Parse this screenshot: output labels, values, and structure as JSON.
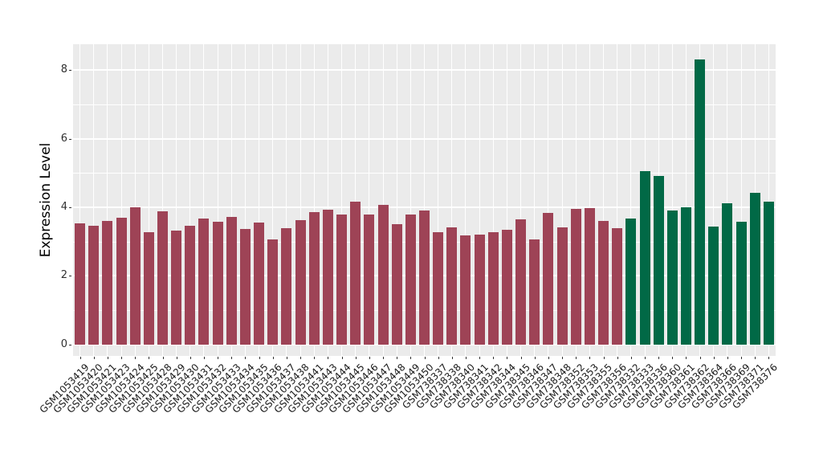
{
  "chart_data": {
    "type": "bar",
    "title": "",
    "xlabel": "",
    "ylabel": "Expression Level",
    "ylim": [
      0,
      8.7
    ],
    "yticks": [
      0,
      2,
      4,
      6,
      8
    ],
    "minor_yticks": [
      1,
      3,
      5,
      7
    ],
    "grid": "on",
    "legend": "none",
    "panel_background": "#ebebeb",
    "grid_color": "#ffffff",
    "tick_color": "#333333",
    "group_colors": [
      "#9e4356",
      "#016946"
    ],
    "categories": [
      "GSM1053419",
      "GSM1053420",
      "GSM1053421",
      "GSM1053423",
      "GSM1053424",
      "GSM1053425",
      "GSM1053428",
      "GSM1053429",
      "GSM1053430",
      "GSM1053431",
      "GSM1053432",
      "GSM1053433",
      "GSM1053434",
      "GSM1053435",
      "GSM1053436",
      "GSM1053437",
      "GSM1053438",
      "GSM1053441",
      "GSM1053443",
      "GSM1053444",
      "GSM1053445",
      "GSM1053446",
      "GSM1053447",
      "GSM1053448",
      "GSM1053449",
      "GSM1053450",
      "GSM738337",
      "GSM738338",
      "GSM738340",
      "GSM738341",
      "GSM738342",
      "GSM738344",
      "GSM738345",
      "GSM738346",
      "GSM738347",
      "GSM738348",
      "GSM738352",
      "GSM738353",
      "GSM738355",
      "GSM738356",
      "GSM738332",
      "GSM738333",
      "GSM738336",
      "GSM738360",
      "GSM738361",
      "GSM738362",
      "GSM738364",
      "GSM738366",
      "GSM738369",
      "GSM738371",
      "GSM738376"
    ],
    "values": [
      3.53,
      3.47,
      3.6,
      3.69,
      4.01,
      3.27,
      3.89,
      3.33,
      3.46,
      3.68,
      3.57,
      3.73,
      3.36,
      3.56,
      3.07,
      3.4,
      3.62,
      3.86,
      3.94,
      3.8,
      4.17,
      3.8,
      4.07,
      3.5,
      3.8,
      3.91,
      3.27,
      3.41,
      3.18,
      3.21,
      3.28,
      3.34,
      3.66,
      3.06,
      3.83,
      3.41,
      3.95,
      3.98,
      3.61,
      3.4,
      3.68,
      5.06,
      4.92,
      3.91,
      3.99,
      8.31,
      3.45,
      4.13,
      3.59,
      4.43,
      4.16
    ],
    "groups": [
      0,
      0,
      0,
      0,
      0,
      0,
      0,
      0,
      0,
      0,
      0,
      0,
      0,
      0,
      0,
      0,
      0,
      0,
      0,
      0,
      0,
      0,
      0,
      0,
      0,
      0,
      0,
      0,
      0,
      0,
      0,
      0,
      0,
      0,
      0,
      0,
      0,
      0,
      0,
      0,
      1,
      1,
      1,
      1,
      1,
      1,
      1,
      1,
      1,
      1,
      1
    ]
  }
}
